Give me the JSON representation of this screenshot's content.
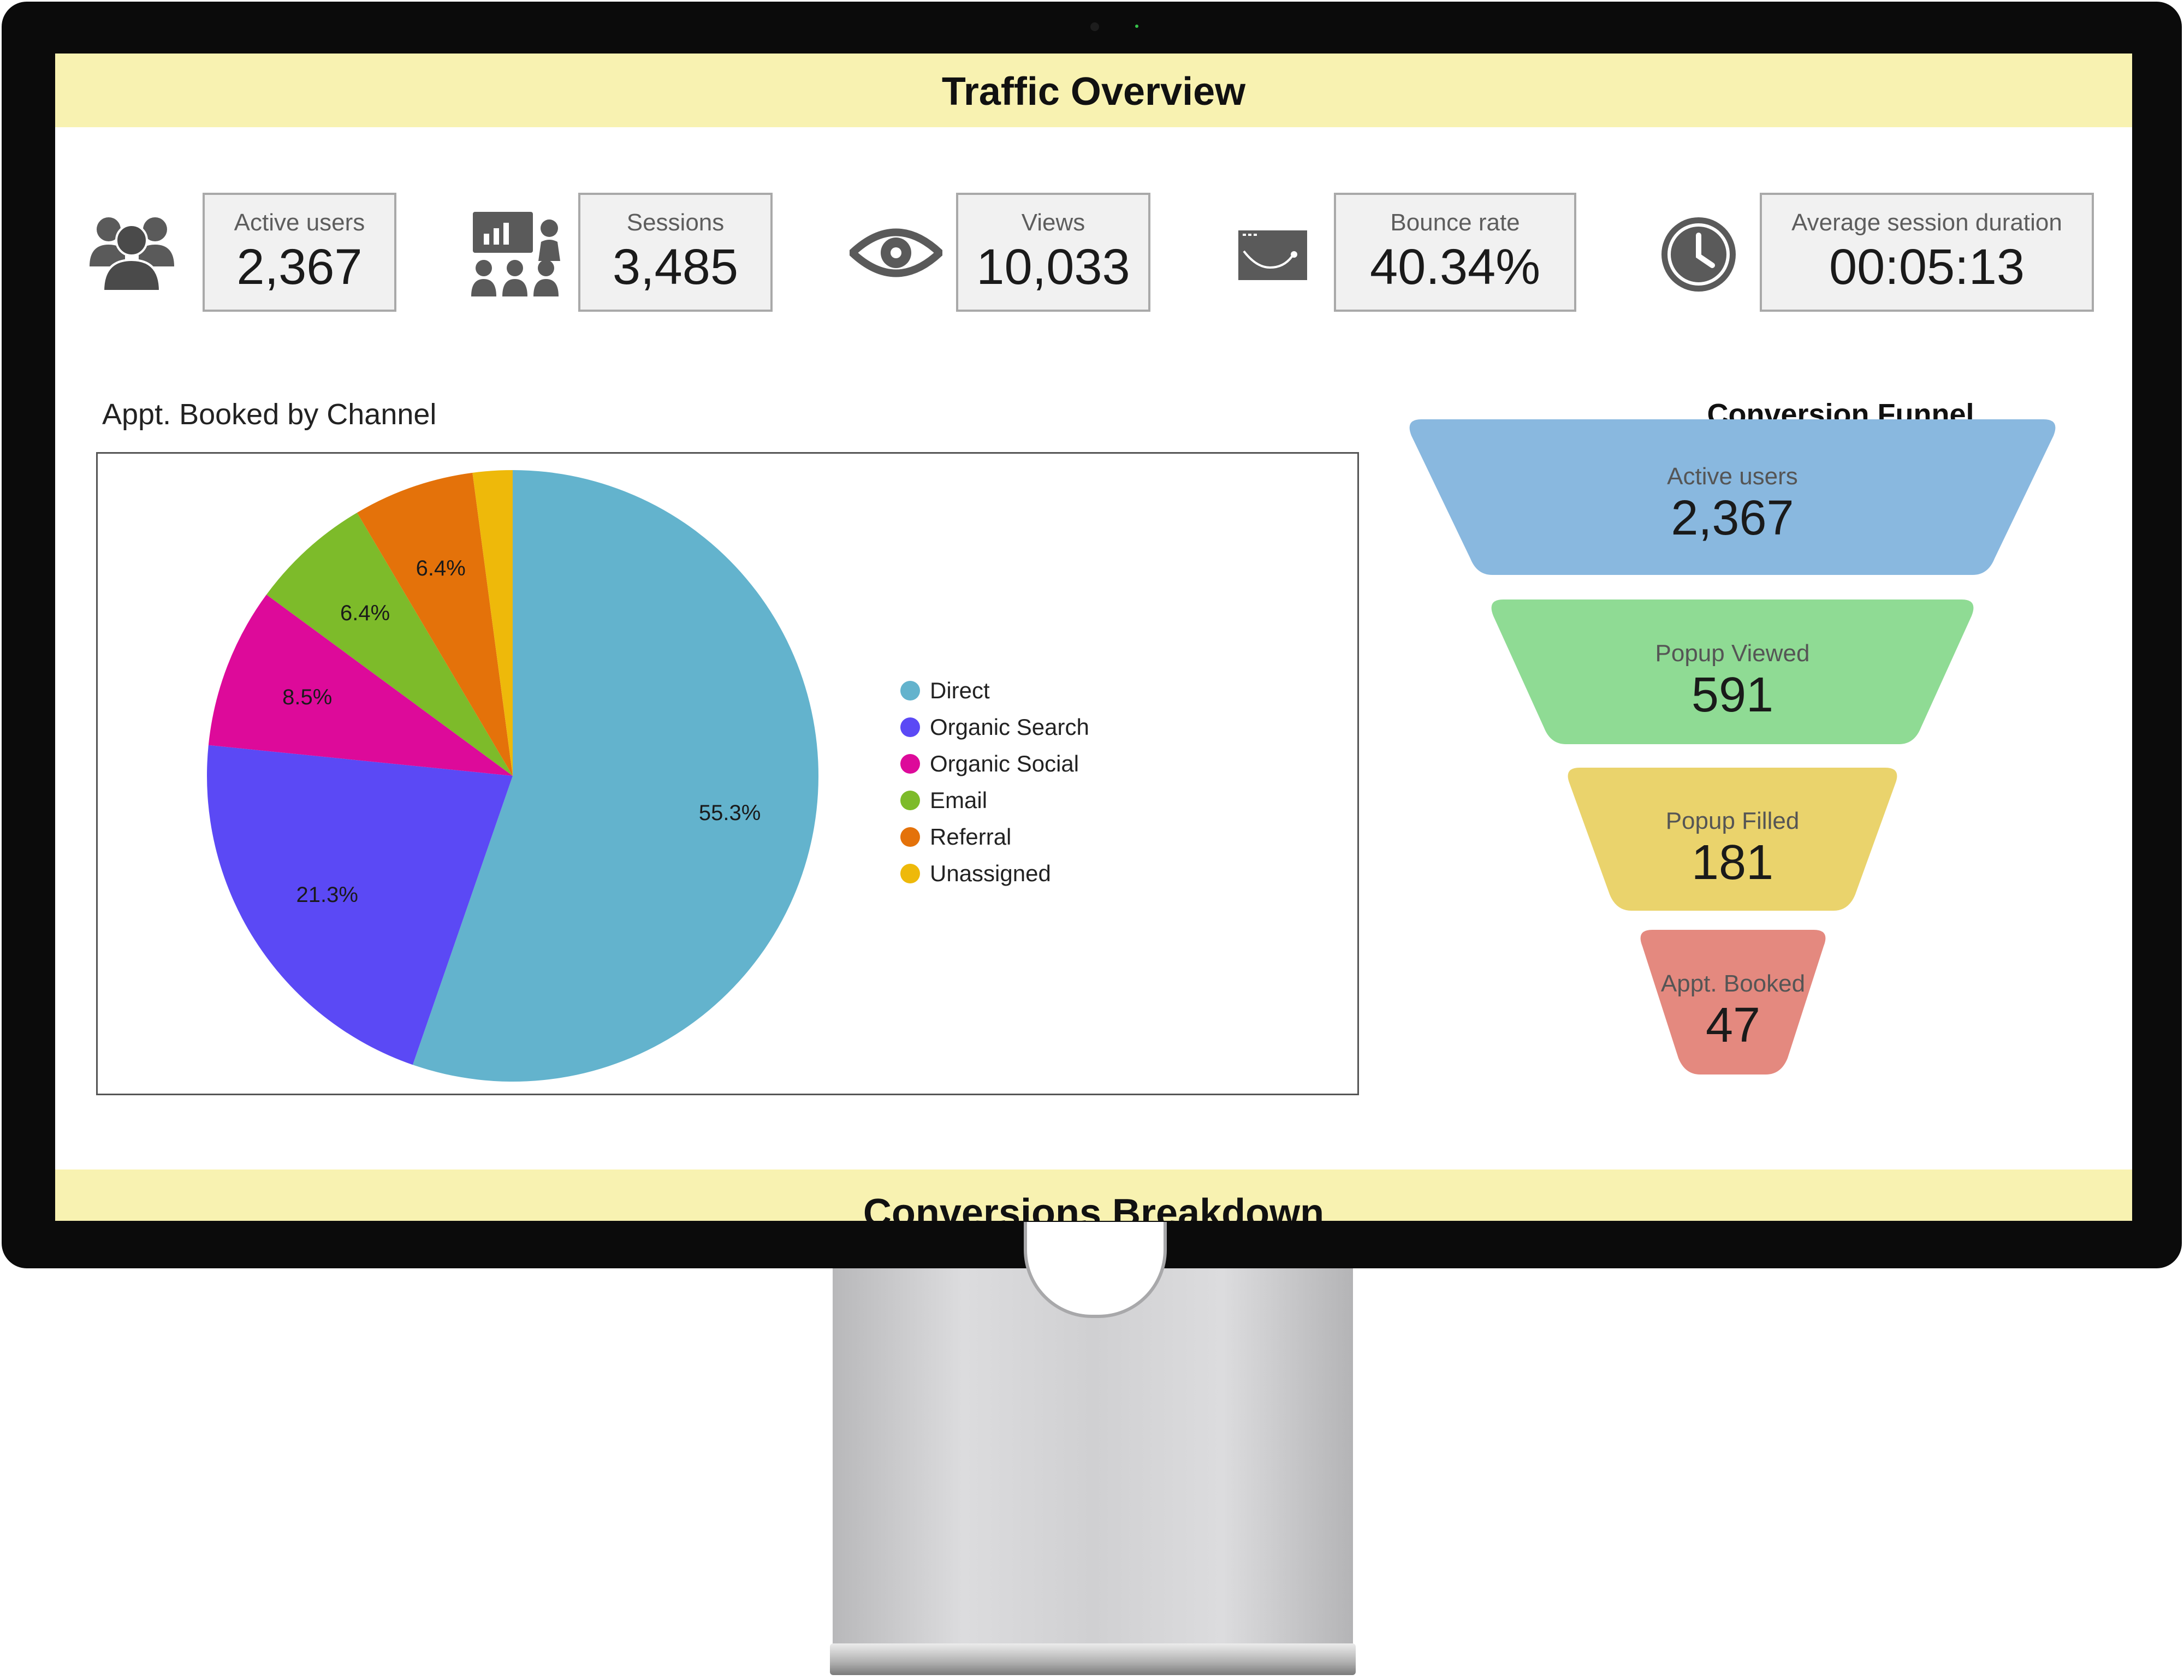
{
  "banner_top": "Traffic Overview",
  "banner_bottom": "Conversions Breakdown",
  "kpis": [
    {
      "label": "Active users",
      "value": "2,367",
      "icon": "users-group-icon"
    },
    {
      "label": "Sessions",
      "value": "3,485",
      "icon": "presentation-audience-icon"
    },
    {
      "label": "Views",
      "value": "10,033",
      "icon": "eye-icon"
    },
    {
      "label": "Bounce rate",
      "value": "40.34%",
      "icon": "browser-bounce-icon"
    },
    {
      "label": "Average session duration",
      "value": "00:05:13",
      "icon": "clock-icon"
    }
  ],
  "pie": {
    "title": "Appt. Booked by Channel",
    "chart_data": {
      "type": "pie",
      "title": "Appt. Booked by Channel",
      "legend_position": "right",
      "slices": [
        {
          "name": "Direct",
          "value": 55.3,
          "label": "55.3%",
          "color": "#63b3cd"
        },
        {
          "name": "Organic Search",
          "value": 21.3,
          "label": "21.3%",
          "color": "#5b49f5"
        },
        {
          "name": "Organic Social",
          "value": 8.5,
          "label": "8.5%",
          "color": "#dd0a9a"
        },
        {
          "name": "Email",
          "value": 6.4,
          "label": "6.4%",
          "color": "#7dbb2a"
        },
        {
          "name": "Referral",
          "value": 6.4,
          "label": "6.4%",
          "color": "#e4720a"
        },
        {
          "name": "Unassigned",
          "value": 2.1,
          "label": "",
          "color": "#eeb90a"
        }
      ]
    }
  },
  "funnel": {
    "title": "Conversion Funnel",
    "stages": [
      {
        "label": "Active users",
        "value": "2,367",
        "color": "#89b8df"
      },
      {
        "label": "Popup Viewed",
        "value": "591",
        "color": "#8fdb94"
      },
      {
        "label": "Popup Filled",
        "value": "181",
        "color": "#ead36c"
      },
      {
        "label": "Appt. Booked",
        "value": "47",
        "color": "#e4897f"
      }
    ]
  }
}
